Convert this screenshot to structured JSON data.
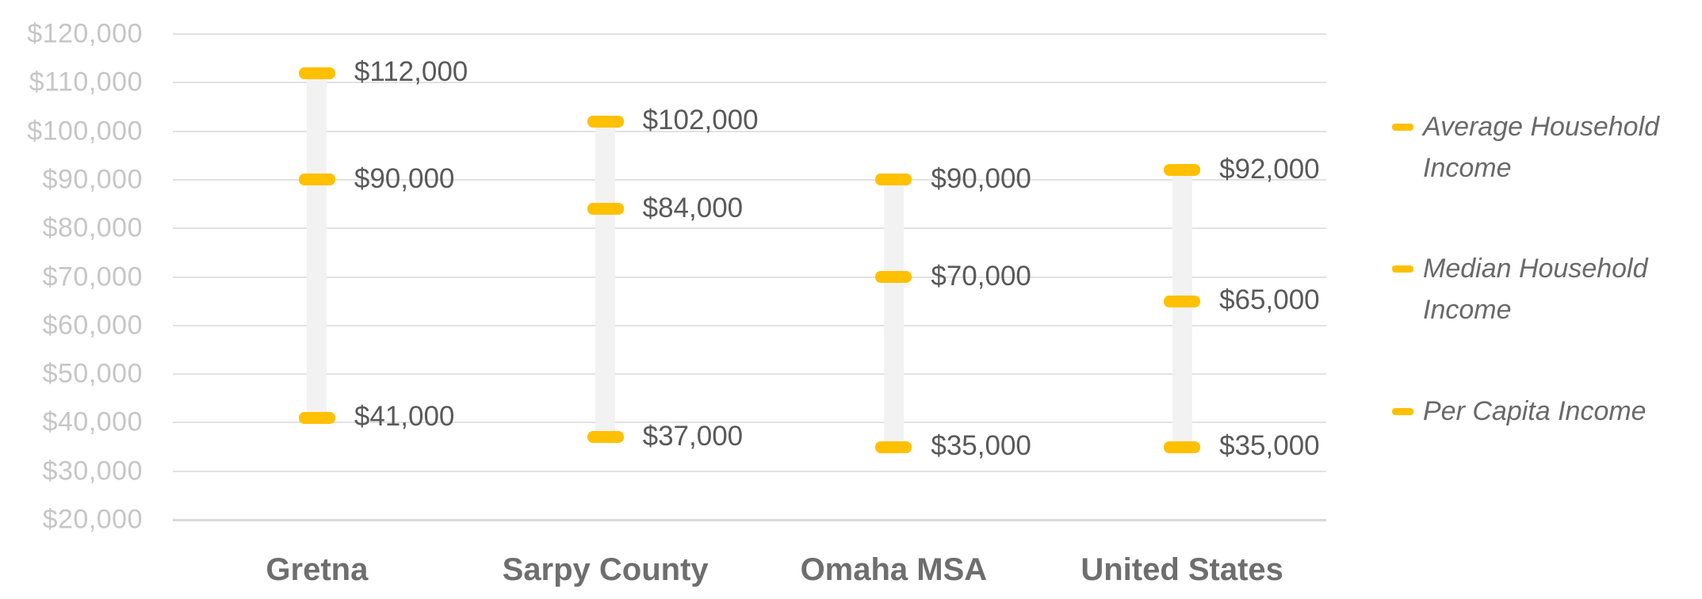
{
  "chart_data": {
    "type": "scatter",
    "title": "",
    "xlabel": "",
    "ylabel": "",
    "categories": [
      "Gretna",
      "Sarpy County",
      "Omaha MSA",
      "United States"
    ],
    "series": [
      {
        "name": "Average Household Income",
        "values": [
          112000,
          102000,
          90000,
          92000
        ],
        "labels": [
          "$112,000",
          "$102,000",
          "$90,000",
          "$92,000"
        ]
      },
      {
        "name": "Median Household Income",
        "values": [
          90000,
          84000,
          70000,
          65000
        ],
        "labels": [
          "$90,000",
          "$84,000",
          "$70,000",
          "$65,000"
        ]
      },
      {
        "name": "Per Capita Income",
        "values": [
          41000,
          37000,
          35000,
          35000
        ],
        "labels": [
          "$41,000",
          "$37,000",
          "$35,000",
          "$35,000"
        ]
      }
    ],
    "ylim": [
      20000,
      120000
    ],
    "ytick_step": 10000,
    "yticks": [
      {
        "value": 120000,
        "label": "$120,000"
      },
      {
        "value": 110000,
        "label": "$110,000"
      },
      {
        "value": 100000,
        "label": "$100,000"
      },
      {
        "value": 90000,
        "label": "$90,000"
      },
      {
        "value": 80000,
        "label": "$80,000"
      },
      {
        "value": 70000,
        "label": "$70,000"
      },
      {
        "value": 60000,
        "label": "$60,000"
      },
      {
        "value": 50000,
        "label": "$50,000"
      },
      {
        "value": 40000,
        "label": "$40,000"
      },
      {
        "value": 30000,
        "label": "$30,000"
      },
      {
        "value": 20000,
        "label": "$20,000"
      }
    ],
    "grid": true,
    "legend_position": "right",
    "colors": {
      "marker": "#FFC000",
      "range_bar": "#F2F2F2",
      "gridline": "#E2E2E2",
      "axis_line": "#D9D9D9",
      "tick_label": "#C6C6C6",
      "value_label": "#595959",
      "category_label": "#6E6E6E",
      "legend_text": "#696969"
    }
  }
}
